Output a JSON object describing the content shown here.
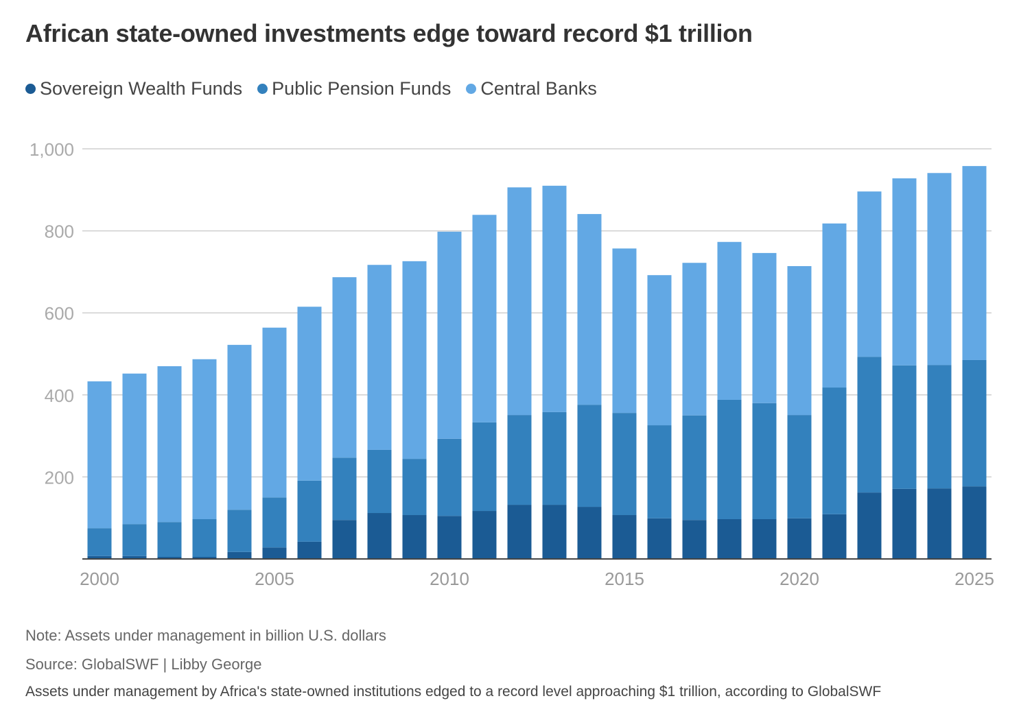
{
  "chart_data": {
    "type": "bar",
    "stacked": true,
    "title": "African state-owned investments edge toward record $1 trillion",
    "categories": [
      2000,
      2001,
      2002,
      2003,
      2004,
      2005,
      2006,
      2007,
      2008,
      2009,
      2010,
      2011,
      2012,
      2013,
      2014,
      2015,
      2016,
      2017,
      2018,
      2019,
      2020,
      2021,
      2022,
      2023,
      2024,
      2025
    ],
    "series": [
      {
        "name": "Sovereign Wealth Funds",
        "color": "#1b5b94",
        "values": [
          7,
          7,
          5,
          5,
          17,
          28,
          42,
          95,
          112,
          107,
          105,
          117,
          132,
          132,
          127,
          107,
          99,
          95,
          97,
          97,
          99,
          109,
          162,
          171,
          172,
          177
        ]
      },
      {
        "name": "Public Pension Funds",
        "color": "#3381bd",
        "values": [
          68,
          78,
          85,
          92,
          103,
          122,
          149,
          152,
          154,
          137,
          188,
          216,
          219,
          226,
          249,
          249,
          227,
          255,
          291,
          283,
          252,
          309,
          331,
          301,
          301,
          308
        ]
      },
      {
        "name": "Central Banks",
        "color": "#62a8e4",
        "values": [
          358,
          367,
          380,
          390,
          402,
          414,
          424,
          440,
          451,
          482,
          505,
          506,
          555,
          552,
          465,
          401,
          366,
          372,
          385,
          366,
          363,
          400,
          403,
          456,
          468,
          473
        ]
      }
    ],
    "ylim": [
      0,
      1000
    ],
    "yticks": [
      "200",
      "400",
      "600",
      "800",
      "1,000"
    ],
    "xticks": [
      "2000",
      "2005",
      "2010",
      "2015",
      "2020",
      "2025"
    ],
    "grid": true,
    "legend": "top-left",
    "note": "Note: Assets under management in billion U.S. dollars",
    "source": "Source: GlobalSWF | Libby George",
    "description": "Assets under management by Africa's state-owned institutions edged to a record level approaching $1 trillion, according to GlobalSWF"
  }
}
